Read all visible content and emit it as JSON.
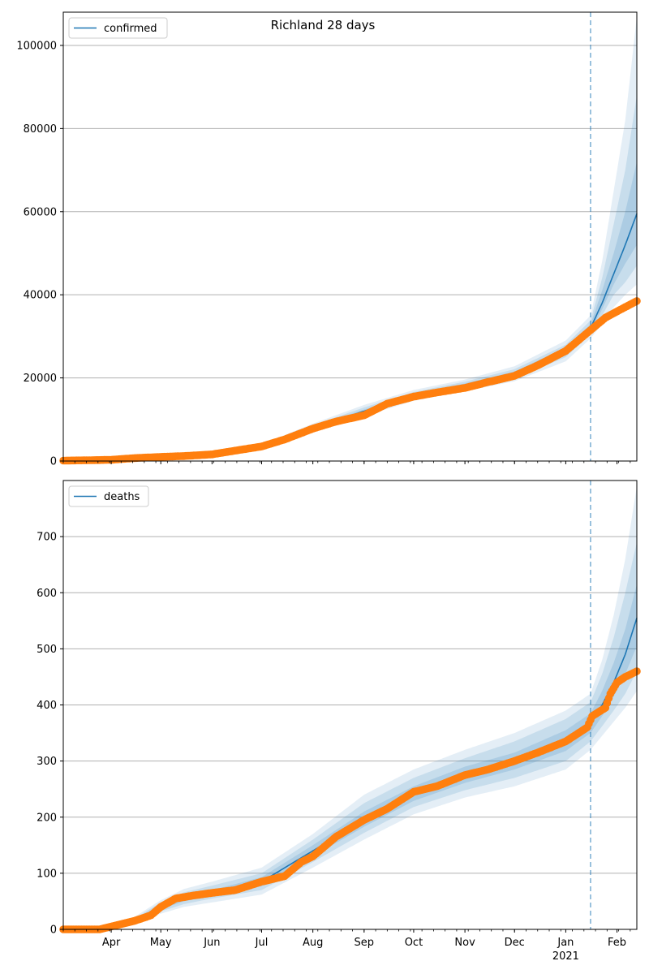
{
  "title": "Richland 28 days",
  "colors": {
    "model": "#1f77b4",
    "observed": "#ff7f0e",
    "band": "#1f77b4",
    "grid": "#b0b0b0",
    "forecast_line": "#1f77b4"
  },
  "x_axis": {
    "start": "2020-03-03",
    "end": "2021-02-13",
    "month_labels": [
      {
        "date": "2020-04-01",
        "label": "Apr"
      },
      {
        "date": "2020-05-01",
        "label": "May"
      },
      {
        "date": "2020-06-01",
        "label": "Jun"
      },
      {
        "date": "2020-07-01",
        "label": "Jul"
      },
      {
        "date": "2020-08-01",
        "label": "Aug"
      },
      {
        "date": "2020-09-01",
        "label": "Sep"
      },
      {
        "date": "2020-10-01",
        "label": "Oct"
      },
      {
        "date": "2020-11-01",
        "label": "Nov"
      },
      {
        "date": "2020-12-01",
        "label": "Dec"
      },
      {
        "date": "2021-01-01",
        "label": "Jan"
      },
      {
        "date": "2021-02-01",
        "label": "Feb"
      }
    ],
    "year_label": {
      "date": "2021-01-01",
      "label": "2021"
    },
    "forecast_start": "2021-01-16"
  },
  "chart_data": [
    {
      "type": "line",
      "legend": "confirmed",
      "legend_position": "top-left",
      "ylim": [
        0,
        108000
      ],
      "yticks": [
        0,
        20000,
        40000,
        60000,
        80000,
        100000
      ],
      "grid": "horizontal",
      "model": {
        "x": [
          "2020-03-03",
          "2020-04-01",
          "2020-05-01",
          "2020-06-01",
          "2020-07-01",
          "2020-08-01",
          "2020-09-01",
          "2020-10-01",
          "2020-11-01",
          "2020-12-01",
          "2021-01-01",
          "2021-01-16",
          "2021-01-23",
          "2021-01-30",
          "2021-02-06",
          "2021-02-13"
        ],
        "y": [
          0,
          300,
          900,
          1600,
          3500,
          8000,
          12000,
          15800,
          18200,
          21000,
          26500,
          32000,
          38000,
          45000,
          52000,
          59500
        ],
        "bands": [
          {
            "lower": [
              0,
              260,
              750,
              1350,
              3000,
              7000,
              10800,
              14500,
              16800,
              19200,
              24000,
              29500,
              33000,
              37000,
              40000,
              42500
            ],
            "upper": [
              0,
              340,
              1050,
              1850,
              4000,
              9000,
              13500,
              17100,
              19600,
              22800,
              29000,
              35000,
              48000,
              65000,
              82000,
              107000
            ]
          },
          {
            "lower": [
              0,
              275,
              800,
              1450,
              3200,
              7400,
              11300,
              15000,
              17300,
              19900,
              25000,
              30500,
              35000,
              40000,
              43000,
              47000
            ],
            "upper": [
              0,
              325,
              1000,
              1750,
              3800,
              8600,
              12900,
              16600,
              19100,
              22100,
              28000,
              33800,
              44000,
              57000,
              70000,
              88000
            ]
          },
          {
            "lower": [
              0,
              288,
              850,
              1520,
              3350,
              7700,
              11650,
              15400,
              17750,
              20450,
              25700,
              31200,
              36500,
              42500,
              47500,
              52000
            ],
            "upper": [
              0,
              312,
              950,
              1680,
              3650,
              8300,
              12400,
              16200,
              18650,
              21550,
              27300,
              32900,
              41000,
              50000,
              60000,
              72000
            ]
          }
        ]
      },
      "observed": {
        "x": [
          "2020-03-03",
          "2020-03-20",
          "2020-04-01",
          "2020-04-15",
          "2020-05-01",
          "2020-05-15",
          "2020-06-01",
          "2020-06-15",
          "2020-07-01",
          "2020-07-15",
          "2020-08-01",
          "2020-08-15",
          "2020-09-01",
          "2020-09-15",
          "2020-10-01",
          "2020-10-15",
          "2020-11-01",
          "2020-11-15",
          "2020-12-01",
          "2020-12-15",
          "2021-01-01",
          "2021-01-16",
          "2021-01-25",
          "2021-02-01",
          "2021-02-13"
        ],
        "y": [
          100,
          200,
          300,
          700,
          1000,
          1200,
          1600,
          2500,
          3500,
          5200,
          7800,
          9500,
          11000,
          13800,
          15500,
          16500,
          17600,
          19000,
          20500,
          23000,
          26500,
          31500,
          34500,
          36000,
          38500
        ]
      }
    },
    {
      "type": "line",
      "legend": "deaths",
      "legend_position": "top-left",
      "ylim": [
        0,
        800
      ],
      "yticks": [
        0,
        100,
        200,
        300,
        400,
        500,
        600,
        700
      ],
      "grid": "horizontal",
      "model": {
        "x": [
          "2020-03-03",
          "2020-04-01",
          "2020-04-15",
          "2020-05-01",
          "2020-05-15",
          "2020-06-01",
          "2020-07-01",
          "2020-08-01",
          "2020-09-01",
          "2020-10-01",
          "2020-11-01",
          "2020-12-01",
          "2021-01-01",
          "2021-01-16",
          "2021-01-23",
          "2021-01-30",
          "2021-02-06",
          "2021-02-13"
        ],
        "y": [
          0,
          5,
          15,
          40,
          55,
          65,
          85,
          140,
          195,
          240,
          275,
          300,
          335,
          365,
          400,
          440,
          490,
          555
        ],
        "bands": [
          {
            "lower": [
              0,
              3,
              10,
              28,
              40,
              48,
              62,
              110,
              160,
              205,
              235,
              255,
              285,
              320,
              345,
              370,
              395,
              425
            ],
            "upper": [
              0,
              7,
              22,
              52,
              72,
              85,
              110,
              170,
              240,
              285,
              320,
              350,
              390,
              420,
              480,
              560,
              660,
              790
            ]
          },
          {
            "lower": [
              0,
              4,
              12,
              32,
              45,
              55,
              70,
              120,
              172,
              218,
              248,
              270,
              300,
              335,
              362,
              390,
              420,
              460
            ],
            "upper": [
              0,
              6,
              19,
              48,
              66,
              78,
              100,
              160,
              225,
              270,
              305,
              335,
              375,
              405,
              455,
              520,
              600,
              690
            ]
          },
          {
            "lower": [
              0,
              4,
              13,
              36,
              50,
              60,
              77,
              130,
              183,
              229,
              261,
              285,
              318,
              350,
              380,
              415,
              455,
              505
            ],
            "upper": [
              0,
              6,
              17,
              44,
              60,
              70,
              93,
              150,
              210,
              255,
              290,
              315,
              355,
              385,
              425,
              475,
              535,
              615
            ]
          }
        ]
      },
      "observed": {
        "x": [
          "2020-03-03",
          "2020-03-25",
          "2020-04-01",
          "2020-04-15",
          "2020-04-25",
          "2020-05-01",
          "2020-05-10",
          "2020-05-20",
          "2020-06-01",
          "2020-06-15",
          "2020-07-01",
          "2020-07-15",
          "2020-07-25",
          "2020-08-01",
          "2020-08-15",
          "2020-09-01",
          "2020-09-15",
          "2020-10-01",
          "2020-10-15",
          "2020-11-01",
          "2020-11-15",
          "2020-12-01",
          "2020-12-15",
          "2021-01-01",
          "2021-01-14",
          "2021-01-17",
          "2021-01-25",
          "2021-01-28",
          "2021-02-01",
          "2021-02-06",
          "2021-02-13"
        ],
        "y": [
          0,
          0,
          5,
          15,
          25,
          40,
          55,
          60,
          65,
          70,
          85,
          95,
          120,
          130,
          165,
          195,
          215,
          245,
          255,
          275,
          285,
          300,
          315,
          335,
          360,
          380,
          395,
          420,
          440,
          450,
          460
        ]
      }
    }
  ]
}
